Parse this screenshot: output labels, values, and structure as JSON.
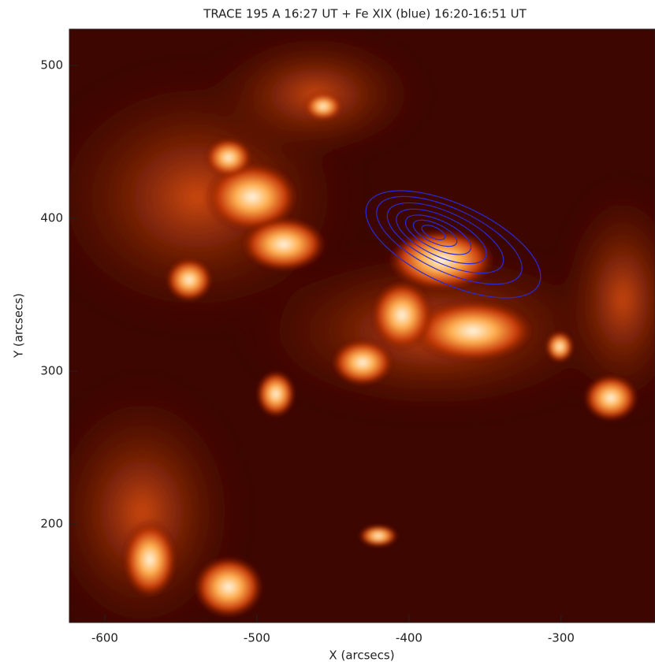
{
  "chart_data": {
    "type": "image",
    "title": "TRACE 195 A 16:27 UT + Fe XIX (blue) 16:20-16:51 UT",
    "xlabel": "X (arcsecs)",
    "ylabel": "Y (arcsecs)",
    "xlim": [
      -623.3,
      -238.3
    ],
    "ylim": [
      135.6,
      523.7
    ],
    "xticks": [
      -600,
      -500,
      -400,
      -300
    ],
    "yticks": [
      200,
      300,
      400,
      500
    ]
  }
}
